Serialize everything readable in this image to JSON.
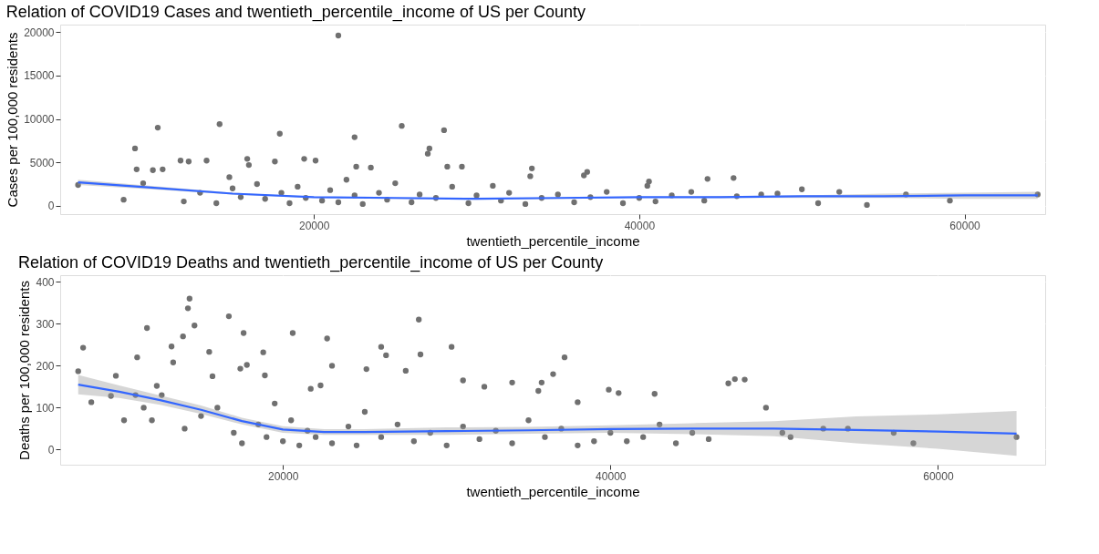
{
  "chart_data": [
    {
      "type": "scatter",
      "title": "Relation of COVID19 Cases and twentieth_percentile_income of US per County",
      "xlabel": "twentieth_percentile_income",
      "ylabel": "Cases per 100,000 residents",
      "xlim": [
        4400,
        64960
      ],
      "ylim": [
        -960,
        20860
      ],
      "xticks": [
        20000,
        40000,
        60000
      ],
      "yticks": [
        0,
        5000,
        10000,
        15000,
        20000
      ],
      "grid": true,
      "series": [
        {
          "marker": "circle",
          "color": "#707070",
          "x": [
            5500,
            8300,
            9000,
            9100,
            9500,
            10400,
            10100,
            10700,
            11800,
            12300,
            13400,
            14200,
            14800,
            15900,
            16000,
            17900,
            17600,
            19400,
            20100,
            21500,
            22500,
            22600,
            23500,
            25400,
            27000,
            27100,
            28000,
            28200,
            29100,
            31000,
            33300,
            33400,
            36800,
            36600,
            40600,
            40500,
            43200,
            44200,
            45800,
            52300,
            54000,
            56400,
            59100,
            64500,
            12000,
            13000,
            14000,
            15000,
            15500,
            16500,
            17000,
            18000,
            18500,
            19000,
            19500,
            20500,
            21000,
            21500,
            22000,
            22500,
            23000,
            24000,
            24500,
            25000,
            26000,
            26500,
            27500,
            28500,
            29500,
            30000,
            31500,
            32000,
            33000,
            34000,
            35000,
            36000,
            37000,
            38000,
            39000,
            40000,
            41000,
            42000,
            44000,
            46000,
            47500,
            48500,
            50000,
            51000
          ],
          "values": [
            2400,
            700,
            6600,
            4200,
            2600,
            9000,
            4100,
            4200,
            5200,
            5100,
            5200,
            9400,
            3300,
            5400,
            4700,
            8300,
            5100,
            5400,
            5200,
            19600,
            7900,
            4500,
            4400,
            9200,
            6000,
            6600,
            8700,
            4500,
            4500,
            2300,
            3400,
            4300,
            3900,
            3500,
            2800,
            2300,
            1600,
            3100,
            3200,
            1600,
            100,
            1300,
            600,
            1300,
            500,
            1500,
            300,
            2000,
            1000,
            2500,
            800,
            1500,
            300,
            2200,
            900,
            600,
            1800,
            400,
            3000,
            1200,
            200,
            1500,
            700,
            2600,
            400,
            1300,
            900,
            2200,
            300,
            1200,
            600,
            1500,
            200,
            900,
            1300,
            400,
            1000,
            1600,
            300,
            900,
            500,
            1200,
            600,
            1100,
            1300,
            1400,
            1900,
            300
          ]
        },
        {
          "type": "line",
          "marker": "none",
          "color": "#3366ff",
          "x": [
            5500,
            10000,
            15000,
            20000,
            25000,
            30000,
            35000,
            40000,
            45000,
            50000,
            55000,
            60000,
            64500
          ],
          "values": [
            2700,
            2100,
            1400,
            1000,
            900,
            800,
            900,
            1000,
            1000,
            1100,
            1100,
            1200,
            1200
          ],
          "lower": [
            2400,
            1900,
            1300,
            900,
            800,
            700,
            800,
            900,
            900,
            900,
            900,
            800,
            800
          ],
          "upper": [
            3000,
            2300,
            1500,
            1000,
            900,
            900,
            900,
            1000,
            1100,
            1200,
            1400,
            1500,
            1600
          ]
        }
      ]
    },
    {
      "type": "scatter",
      "title": "Relation of COVID19 Deaths and twentieth_percentile_income of US per County",
      "xlabel": "twentieth_percentile_income",
      "ylabel": "Deaths per 100,000 residents",
      "xlim": [
        6400,
        66550
      ],
      "ylim": [
        -36,
        416
      ],
      "xticks": [
        20000,
        40000,
        60000
      ],
      "yticks": [
        0,
        100,
        200,
        300,
        400
      ],
      "grid": true,
      "series": [
        {
          "marker": "circle",
          "color": "#707070",
          "x": [
            7500,
            7800,
            8300,
            9500,
            9800,
            10300,
            11000,
            11100,
            11500,
            11700,
            12000,
            12300,
            12600,
            13200,
            13300,
            13900,
            14200,
            14300,
            14600,
            15500,
            15700,
            16700,
            17600,
            17800,
            17400,
            18800,
            18900,
            20600,
            21700,
            22300,
            22700,
            23000,
            25100,
            26000,
            26300,
            27500,
            28300,
            28400,
            30300,
            31000,
            32300,
            34000,
            35600,
            35800,
            36500,
            37200,
            38000,
            39900,
            40500,
            42700,
            47200,
            47600,
            48200,
            49500,
            51000,
            54500,
            57300,
            58500,
            64800,
            14000,
            15000,
            16000,
            17000,
            17500,
            18500,
            19000,
            19500,
            20000,
            20500,
            21000,
            21500,
            22000,
            23000,
            24000,
            24500,
            25000,
            26000,
            27000,
            28000,
            29000,
            30000,
            31000,
            32000,
            33000,
            34000,
            35000,
            36000,
            37000,
            38000,
            39000,
            40000,
            41000,
            42000,
            43000,
            44000,
            45000,
            46000,
            50500,
            53000
          ],
          "values": [
            187,
            243,
            113,
            128,
            176,
            70,
            130,
            220,
            100,
            290,
            70,
            152,
            130,
            246,
            208,
            270,
            337,
            360,
            296,
            233,
            175,
            318,
            278,
            202,
            193,
            232,
            177,
            278,
            145,
            153,
            265,
            200,
            192,
            245,
            225,
            188,
            310,
            227,
            245,
            165,
            150,
            160,
            140,
            160,
            180,
            220,
            113,
            143,
            135,
            133,
            158,
            168,
            167,
            100,
            30,
            50,
            40,
            15,
            30,
            50,
            80,
            100,
            40,
            15,
            60,
            30,
            110,
            20,
            70,
            10,
            45,
            30,
            15,
            55,
            10,
            90,
            30,
            60,
            20,
            40,
            10,
            55,
            25,
            45,
            15,
            70,
            30,
            50,
            10,
            20,
            40,
            20,
            30,
            60,
            15,
            40,
            25,
            40,
            50
          ]
        },
        {
          "type": "line",
          "marker": "none",
          "color": "#3366ff",
          "x": [
            7500,
            10000,
            12500,
            15000,
            17500,
            20000,
            22500,
            25000,
            30000,
            35000,
            40000,
            45000,
            50000,
            55000,
            60000,
            64800
          ],
          "values": [
            155,
            138,
            118,
            95,
            68,
            48,
            42,
            42,
            44,
            46,
            49,
            50,
            50,
            47,
            43,
            38
          ],
          "lower": [
            132,
            123,
            107,
            85,
            60,
            40,
            35,
            35,
            35,
            38,
            40,
            37,
            32,
            15,
            2,
            -15
          ],
          "upper": [
            178,
            153,
            129,
            105,
            76,
            56,
            49,
            49,
            53,
            54,
            58,
            63,
            68,
            79,
            84,
            92
          ]
        }
      ]
    }
  ]
}
